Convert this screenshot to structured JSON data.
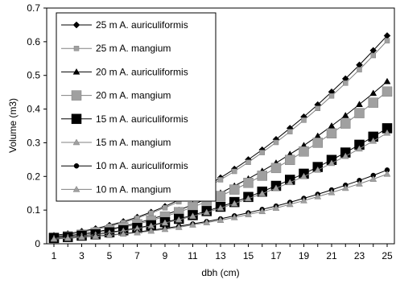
{
  "chart_data": {
    "type": "line",
    "xlabel": "dbh (cm)",
    "ylabel": "Volume (m3)",
    "x": [
      1,
      2,
      3,
      4,
      5,
      6,
      7,
      8,
      9,
      10,
      11,
      12,
      13,
      14,
      15,
      16,
      17,
      18,
      19,
      20,
      21,
      22,
      23,
      24,
      25
    ],
    "x_tick_labels": [
      "1",
      "3",
      "5",
      "7",
      "9",
      "11",
      "13",
      "15",
      "17",
      "19",
      "21",
      "23",
      "25"
    ],
    "ylim": [
      0,
      0.7
    ],
    "y_ticks": [
      0,
      0.1,
      0.2,
      0.3,
      0.4,
      0.5,
      0.6,
      0.7
    ],
    "y_tick_labels": [
      "0",
      "0.1",
      "0.2",
      "0.3",
      "0.4",
      "0.5",
      "0.6",
      "0.7"
    ],
    "grid": false,
    "legend_position": "top-left",
    "series": [
      {
        "name": "25 m A. auriculiformis",
        "marker": "diamond",
        "color": "#000000",
        "fill": "#000000",
        "size": 6,
        "values": [
          0.025,
          0.03,
          0.037,
          0.045,
          0.055,
          0.066,
          0.079,
          0.094,
          0.111,
          0.13,
          0.15,
          0.172,
          0.196,
          0.222,
          0.25,
          0.279,
          0.31,
          0.343,
          0.377,
          0.413,
          0.451,
          0.49,
          0.531,
          0.574,
          0.618
        ]
      },
      {
        "name": "25 m A. mangium",
        "marker": "square",
        "color": "#808080",
        "fill": "#a0a0a0",
        "size": 6,
        "values": [
          0.022,
          0.027,
          0.034,
          0.042,
          0.052,
          0.063,
          0.076,
          0.091,
          0.107,
          0.125,
          0.145,
          0.167,
          0.19,
          0.215,
          0.242,
          0.271,
          0.301,
          0.333,
          0.367,
          0.402,
          0.439,
          0.477,
          0.517,
          0.559,
          0.603
        ]
      },
      {
        "name": "20 m A. auriculiformis",
        "marker": "triangle",
        "color": "#000000",
        "fill": "#000000",
        "size": 6,
        "values": [
          0.02,
          0.024,
          0.029,
          0.035,
          0.043,
          0.052,
          0.062,
          0.073,
          0.086,
          0.1,
          0.116,
          0.133,
          0.151,
          0.172,
          0.193,
          0.216,
          0.24,
          0.266,
          0.292,
          0.32,
          0.35,
          0.381,
          0.414,
          0.447,
          0.482
        ]
      },
      {
        "name": "20 m A. mangium",
        "marker": "square",
        "color": "#808080",
        "fill": "#a0a0a0",
        "size": 12,
        "values": [
          0.018,
          0.022,
          0.027,
          0.033,
          0.04,
          0.049,
          0.058,
          0.069,
          0.081,
          0.094,
          0.109,
          0.125,
          0.142,
          0.161,
          0.181,
          0.202,
          0.225,
          0.249,
          0.274,
          0.3,
          0.328,
          0.357,
          0.388,
          0.419,
          0.452
        ]
      },
      {
        "name": "15 m A. auriculiformis",
        "marker": "square",
        "color": "#000000",
        "fill": "#000000",
        "size": 12,
        "values": [
          0.017,
          0.02,
          0.024,
          0.028,
          0.034,
          0.04,
          0.047,
          0.055,
          0.064,
          0.074,
          0.085,
          0.097,
          0.11,
          0.124,
          0.139,
          0.155,
          0.172,
          0.19,
          0.208,
          0.228,
          0.249,
          0.271,
          0.294,
          0.318,
          0.343
        ]
      },
      {
        "name": "15 m A. mangium",
        "marker": "triangle",
        "color": "#808080",
        "fill": "#a0a0a0",
        "size": 6,
        "values": [
          0.016,
          0.019,
          0.023,
          0.027,
          0.032,
          0.038,
          0.045,
          0.053,
          0.062,
          0.071,
          0.082,
          0.093,
          0.106,
          0.119,
          0.134,
          0.149,
          0.165,
          0.182,
          0.2,
          0.219,
          0.239,
          0.26,
          0.282,
          0.305,
          0.329
        ]
      },
      {
        "name": "10 m A. auriculiformis",
        "marker": "circle",
        "color": "#000000",
        "fill": "#000000",
        "size": 6,
        "values": [
          0.015,
          0.017,
          0.02,
          0.023,
          0.026,
          0.03,
          0.035,
          0.04,
          0.046,
          0.052,
          0.059,
          0.066,
          0.074,
          0.083,
          0.092,
          0.102,
          0.112,
          0.123,
          0.135,
          0.147,
          0.16,
          0.174,
          0.188,
          0.203,
          0.219
        ]
      },
      {
        "name": "10 m A. mangium",
        "marker": "triangle",
        "color": "#808080",
        "fill": "#a0a0a0",
        "size": 6,
        "values": [
          0.014,
          0.016,
          0.019,
          0.022,
          0.025,
          0.029,
          0.033,
          0.038,
          0.043,
          0.049,
          0.056,
          0.063,
          0.07,
          0.078,
          0.087,
          0.096,
          0.106,
          0.117,
          0.128,
          0.14,
          0.152,
          0.165,
          0.178,
          0.192,
          0.207
        ]
      }
    ]
  }
}
